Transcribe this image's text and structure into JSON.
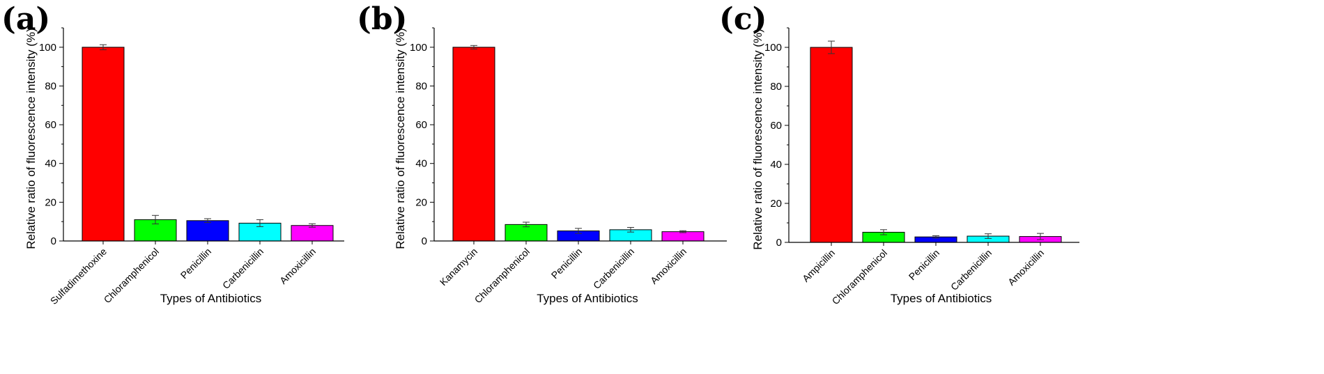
{
  "chart_data": [
    {
      "panel_label": "(a)",
      "type": "bar",
      "title": "",
      "xlabel": "Types of Antibiotics",
      "ylabel": "Relative ratio of fluorescence intensity (%)",
      "ylim": [
        0,
        110
      ],
      "yticks": [
        0,
        20,
        40,
        60,
        80,
        100
      ],
      "categories": [
        "Sulfadimethoxine",
        "Chloramphenicol",
        "Penicillin",
        "Carbenicillin",
        "Amoxicillin"
      ],
      "values": [
        100,
        11,
        10.5,
        9.2,
        8
      ],
      "errors": [
        1.3,
        2.2,
        1.0,
        1.8,
        0.9
      ],
      "colors": [
        "#ff0000",
        "#00ff00",
        "#0000ff",
        "#00ffff",
        "#ff00ff"
      ]
    },
    {
      "panel_label": "(b)",
      "type": "bar",
      "title": "",
      "xlabel": "Types of Antibiotics",
      "ylabel": "Relative ratio of fluorescence intensity (%)",
      "ylim": [
        0,
        110
      ],
      "yticks": [
        0,
        20,
        40,
        60,
        80,
        100
      ],
      "categories": [
        "Kanamycin",
        "Chloramphenicol",
        "Penicillin",
        "Carbenicillin",
        "Amoxicillin"
      ],
      "values": [
        100,
        8.5,
        5.2,
        5.8,
        4.8
      ],
      "errors": [
        0.9,
        1.2,
        1.3,
        1.2,
        0.5
      ],
      "colors": [
        "#ff0000",
        "#00ff00",
        "#0000ff",
        "#00ffff",
        "#ff00ff"
      ]
    },
    {
      "panel_label": "(c)",
      "type": "bar",
      "title": "",
      "xlabel": "Types of Antibiotics",
      "ylabel": "Relative ratio of fluorescence intensity (%)",
      "ylim": [
        0,
        110
      ],
      "yticks": [
        0,
        20,
        40,
        60,
        80,
        100
      ],
      "categories": [
        "Ampicillin",
        "Chloramphenicol",
        "Penicillin",
        "Carbenicillin",
        "Amoxicillin"
      ],
      "values": [
        100,
        5.2,
        2.8,
        3.2,
        3.0
      ],
      "errors": [
        3.2,
        1.3,
        0.6,
        1.2,
        1.6
      ],
      "colors": [
        "#ff0000",
        "#00ff00",
        "#0000ff",
        "#00ffff",
        "#ff00ff"
      ]
    }
  ]
}
